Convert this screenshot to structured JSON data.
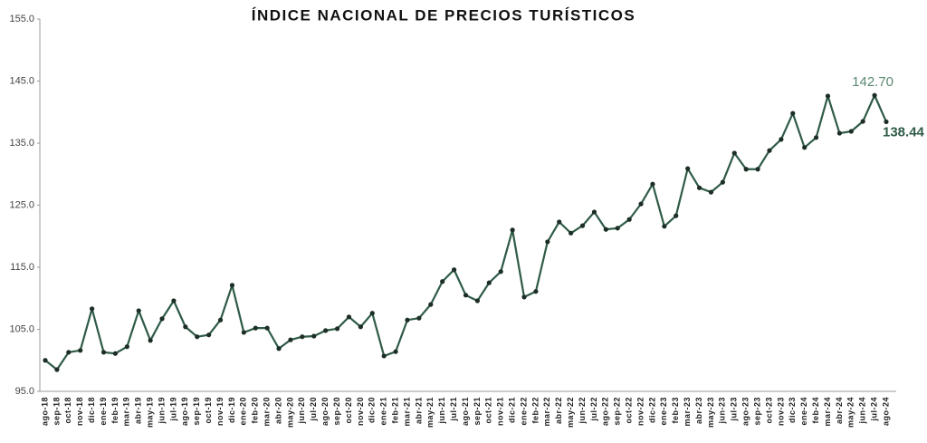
{
  "chart_data": {
    "type": "line",
    "title": "ÍNDICE NACIONAL DE PRECIOS TURÍSTICOS",
    "color": "#2f5b47",
    "categories": [
      "ago-18",
      "sep-18",
      "oct-18",
      "nov-18",
      "dic-18",
      "ene-19",
      "feb-19",
      "mar-19",
      "abr-19",
      "may-19",
      "jun-19",
      "jul-19",
      "ago-19",
      "sep-19",
      "oct-19",
      "nov-19",
      "dic-19",
      "ene-20",
      "feb-20",
      "mar-20",
      "abr-20",
      "may-20",
      "jun-20",
      "jul-20",
      "ago-20",
      "sep-20",
      "oct-20",
      "nov-20",
      "dic-20",
      "ene-21",
      "feb-21",
      "mar-21",
      "abr-21",
      "may-21",
      "jun-21",
      "jul-21",
      "ago-21",
      "sep-21",
      "oct-21",
      "nov-21",
      "dic-21",
      "ene-22",
      "feb-22",
      "mar-22",
      "abr-22",
      "may-22",
      "jun-22",
      "jul-22",
      "ago-22",
      "sep-22",
      "oct-22",
      "nov-22",
      "dic-22",
      "ene-23",
      "feb-23",
      "mar-23",
      "abr-23",
      "may-23",
      "jun-23",
      "jul-23",
      "ago-23",
      "sep-23",
      "oct-23",
      "nov-23",
      "dic-23",
      "ene-24",
      "feb-24",
      "mar-24",
      "abr-24",
      "may-24",
      "jun-24",
      "jul-24",
      "ago-24"
    ],
    "values": [
      100.0,
      98.5,
      101.3,
      101.6,
      108.3,
      101.3,
      101.1,
      102.2,
      108.0,
      103.2,
      106.7,
      109.6,
      105.4,
      103.8,
      104.1,
      106.5,
      112.1,
      104.5,
      105.2,
      105.2,
      101.9,
      103.3,
      103.8,
      103.9,
      104.8,
      105.1,
      107.0,
      105.4,
      107.6,
      100.7,
      101.4,
      106.5,
      106.8,
      109.0,
      112.7,
      114.6,
      110.5,
      109.6,
      112.5,
      114.3,
      121.0,
      110.2,
      111.1,
      119.1,
      122.3,
      120.5,
      121.7,
      123.9,
      121.1,
      121.3,
      122.7,
      125.2,
      128.4,
      121.6,
      123.3,
      130.9,
      127.8,
      127.1,
      128.7,
      133.4,
      130.8,
      130.8,
      133.8,
      135.6,
      139.8,
      134.3,
      135.9,
      142.6,
      136.6,
      136.9,
      138.5,
      142.7,
      138.44
    ],
    "value_labels": [
      null,
      null,
      null,
      null,
      null,
      null,
      null,
      null,
      null,
      null,
      null,
      null,
      null,
      null,
      null,
      null,
      null,
      null,
      null,
      null,
      null,
      null,
      null,
      null,
      null,
      null,
      null,
      null,
      null,
      null,
      null,
      null,
      null,
      null,
      null,
      null,
      null,
      null,
      null,
      null,
      null,
      null,
      null,
      null,
      null,
      null,
      null,
      null,
      null,
      null,
      null,
      null,
      null,
      null,
      null,
      null,
      null,
      null,
      null,
      null,
      null,
      null,
      null,
      null,
      null,
      null,
      null,
      null,
      null,
      null,
      null,
      "142.70",
      "138.44"
    ],
    "ylim": [
      95,
      155
    ],
    "yticks": [
      {
        "value": 95,
        "label": "95.0"
      },
      {
        "value": 105,
        "label": "105.0"
      },
      {
        "value": 115,
        "label": "115.0"
      },
      {
        "value": 125,
        "label": "125.0"
      },
      {
        "value": 135,
        "label": "135.0"
      },
      {
        "value": 145,
        "label": "145.0"
      },
      {
        "value": 155,
        "label": "155.0"
      }
    ],
    "grid": false
  }
}
